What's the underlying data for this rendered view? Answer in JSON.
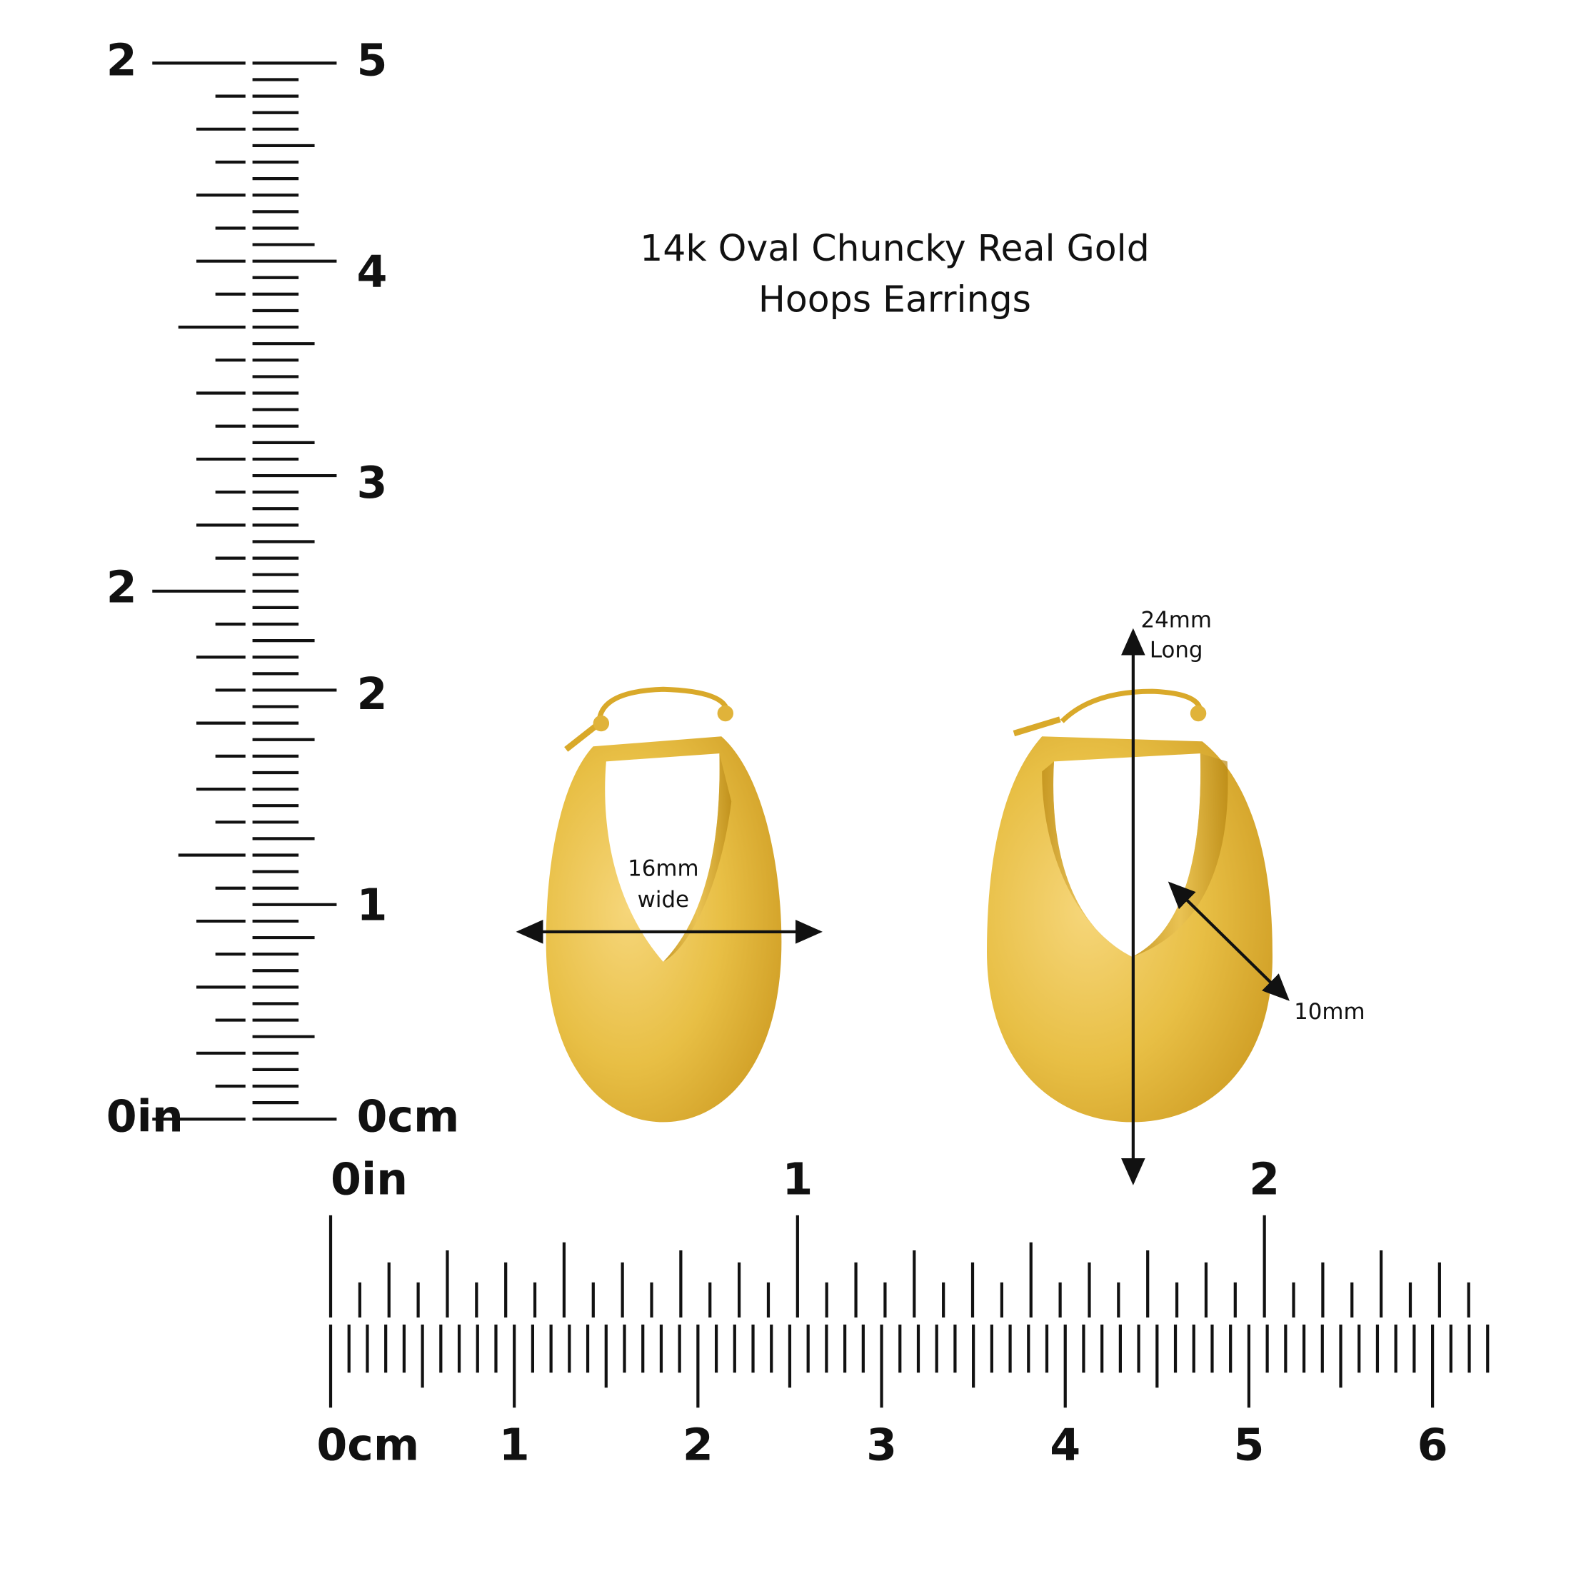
{
  "title": [
    "14k Oval Chuncky Real Gold",
    "Hoops Earrings"
  ],
  "annotations": {
    "width": [
      "16mm",
      "wide"
    ],
    "length": [
      "24mm",
      "Long"
    ],
    "depth": "10mm"
  },
  "left_ruler": {
    "inch_labels": [
      "2",
      "2",
      "0in"
    ],
    "cm_labels": [
      "5",
      "4",
      "3",
      "2",
      "1",
      "0cm"
    ]
  },
  "bottom_ruler": {
    "inch_labels": [
      "0in",
      "1",
      "2"
    ],
    "cm_labels": [
      "0cm",
      "1",
      "2",
      "3",
      "4",
      "5",
      "6"
    ]
  }
}
